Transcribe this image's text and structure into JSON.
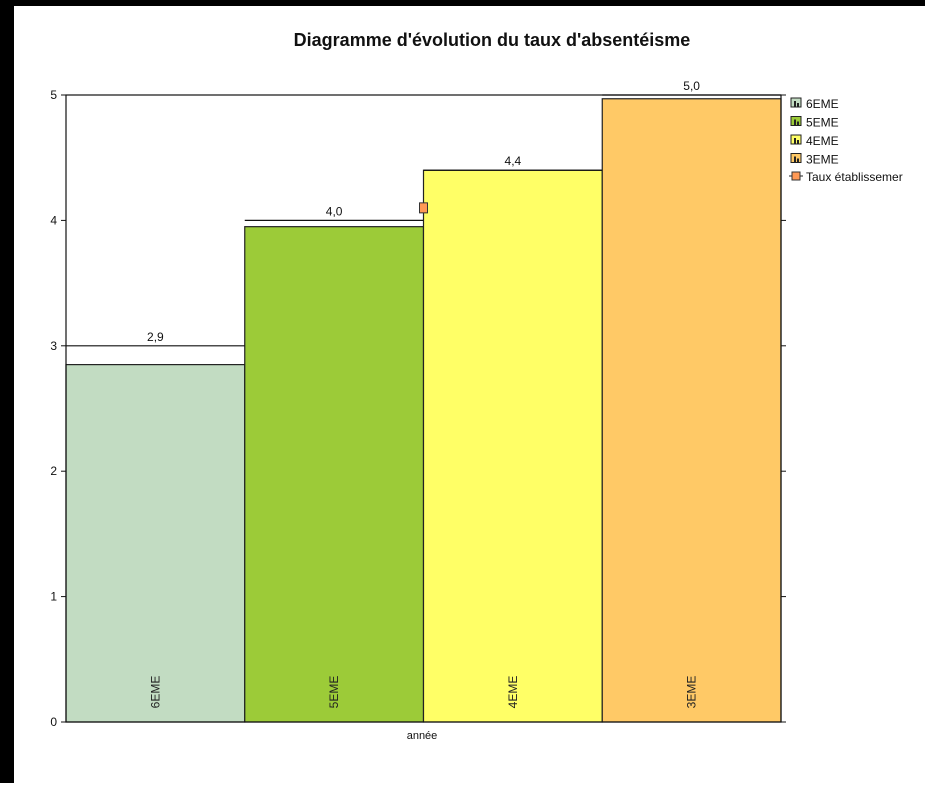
{
  "chart_data": {
    "type": "bar",
    "title": "Diagramme d'évolution du taux d'absentéisme",
    "xlabel": "année",
    "ylabel": "",
    "ylim": [
      0,
      5
    ],
    "yticks": [
      "0",
      "1",
      "2",
      "3",
      "4",
      "5"
    ],
    "grid": false,
    "legend_position": "right",
    "categories": [
      "6EME",
      "5EME",
      "4EME",
      "3EME"
    ],
    "series": [
      {
        "name": "6EME",
        "values": [
          2.85,
          null,
          null,
          null
        ],
        "color": "#c2dcc2"
      },
      {
        "name": "5EME",
        "values": [
          null,
          3.95,
          null,
          null
        ],
        "color": "#9ccb38"
      },
      {
        "name": "4EME",
        "values": [
          null,
          null,
          4.4,
          null
        ],
        "color": "#ffff66"
      },
      {
        "name": "3EME",
        "values": [
          null,
          null,
          null,
          4.97
        ],
        "color": "#ffc966"
      }
    ],
    "data_labels": [
      "2,9",
      "4,0",
      "4,4",
      "5,0"
    ],
    "line_series": {
      "name": "Taux établissemer",
      "color": "#ff9955",
      "values": [
        3.0,
        4.0,
        4.4,
        5.0
      ]
    },
    "legend": [
      "6EME",
      "5EME",
      "4EME",
      "3EME",
      "Taux établissemer"
    ]
  }
}
